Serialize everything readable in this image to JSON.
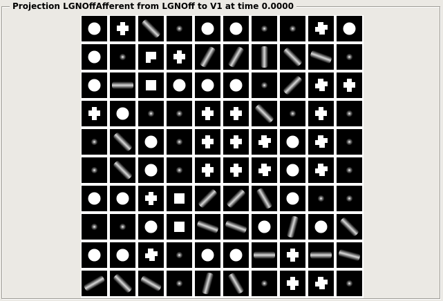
{
  "window": {
    "title": "Projection LGNOffAfferent from LGNOff to V1 at time 0.0000"
  },
  "grid": {
    "rows": 10,
    "cols": 10,
    "cells": [
      [
        "disc",
        "plus",
        "bar-135",
        "dot",
        "disc",
        "disc",
        "dot",
        "dot",
        "blob",
        "disc"
      ],
      [
        "disc",
        "dot",
        "flag",
        "plus",
        "bar-60",
        "bar-60",
        "bar-90",
        "bar-135",
        "bar-160",
        "dot"
      ],
      [
        "disc",
        "bar-0",
        "square",
        "disc",
        "disc",
        "disc",
        "dot",
        "bar-45",
        "blob",
        "plus"
      ],
      [
        "plus",
        "disc",
        "dot",
        "dot",
        "plus",
        "plus",
        "bar-135",
        "dot",
        "plus",
        "dot"
      ],
      [
        "dot",
        "bar-135",
        "disc",
        "dot",
        "plus",
        "plus",
        "blob",
        "disc",
        "blob",
        "dot"
      ],
      [
        "dot",
        "bar-135",
        "disc",
        "dot",
        "plus",
        "plus",
        "blob",
        "disc",
        "blob",
        "dot"
      ],
      [
        "disc",
        "disc",
        "plus",
        "square",
        "bar-45",
        "bar-45",
        "bar-120",
        "disc",
        "dot",
        "dot"
      ],
      [
        "dot",
        "dot",
        "disc",
        "square",
        "bar-160",
        "bar-160",
        "disc",
        "bar-75",
        "disc",
        "bar-135"
      ],
      [
        "disc",
        "disc",
        "blob",
        "dot",
        "disc",
        "disc",
        "bar-0",
        "plus",
        "bar-0",
        "bar-165"
      ],
      [
        "bar-30",
        "bar-135",
        "bar-150",
        "dot",
        "bar-75",
        "bar-120",
        "dot",
        "plus",
        "blob",
        "dot"
      ]
    ]
  }
}
